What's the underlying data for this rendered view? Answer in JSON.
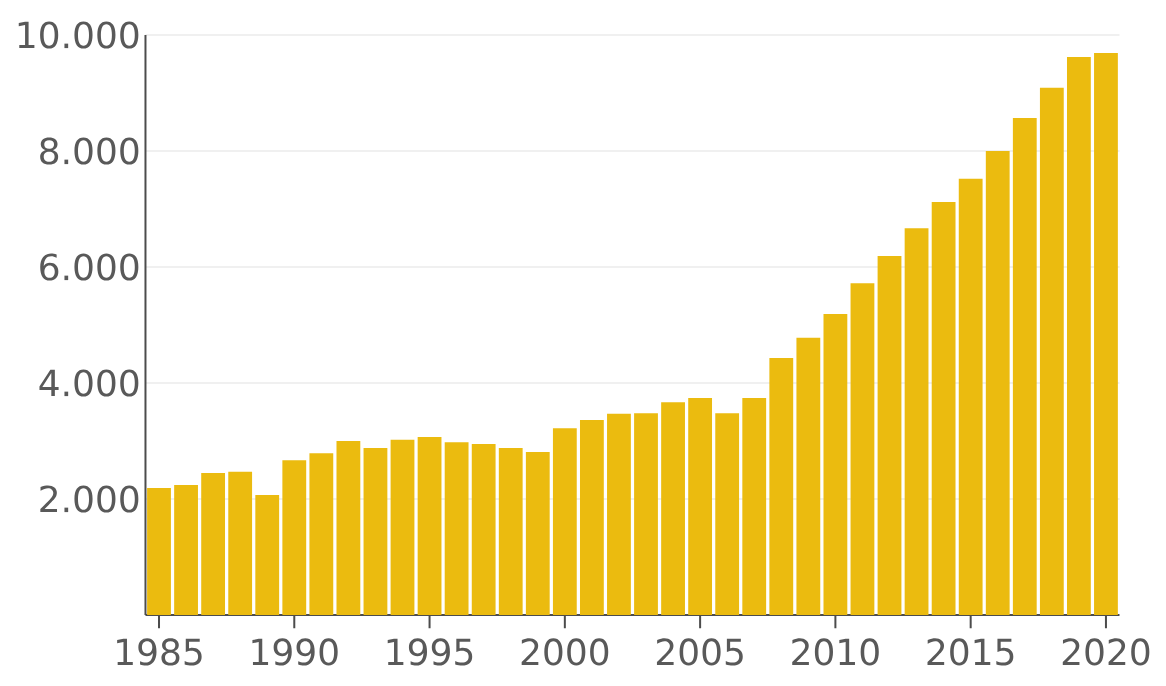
{
  "chart_data": {
    "type": "bar",
    "categories": [
      "1985",
      null,
      null,
      null,
      null,
      "1990",
      null,
      null,
      null,
      null,
      "1995",
      null,
      null,
      null,
      null,
      "2000",
      null,
      null,
      null,
      null,
      "2005",
      null,
      null,
      null,
      null,
      "2010",
      null,
      null,
      null,
      null,
      "2015",
      null,
      null,
      null,
      null,
      "2020"
    ],
    "values": [
      2190,
      2240,
      2450,
      2470,
      2070,
      2670,
      2790,
      3000,
      2880,
      3020,
      3070,
      2980,
      2950,
      2880,
      2810,
      3220,
      3360,
      3470,
      3480,
      3670,
      3740,
      3480,
      3740,
      4430,
      4780,
      5190,
      5720,
      6190,
      6670,
      7120,
      7520,
      8000,
      8570,
      9090,
      9620,
      9690
    ],
    "color": "#ebbb0f",
    "ylim": [
      0,
      10000
    ],
    "yticks": [
      {
        "value": 2000,
        "label": "2.000"
      },
      {
        "value": 4000,
        "label": "4.000"
      },
      {
        "value": 6000,
        "label": "6.000"
      },
      {
        "value": 8000,
        "label": "8.000"
      },
      {
        "value": 10000,
        "label": "10.000"
      }
    ],
    "grid": "y"
  }
}
